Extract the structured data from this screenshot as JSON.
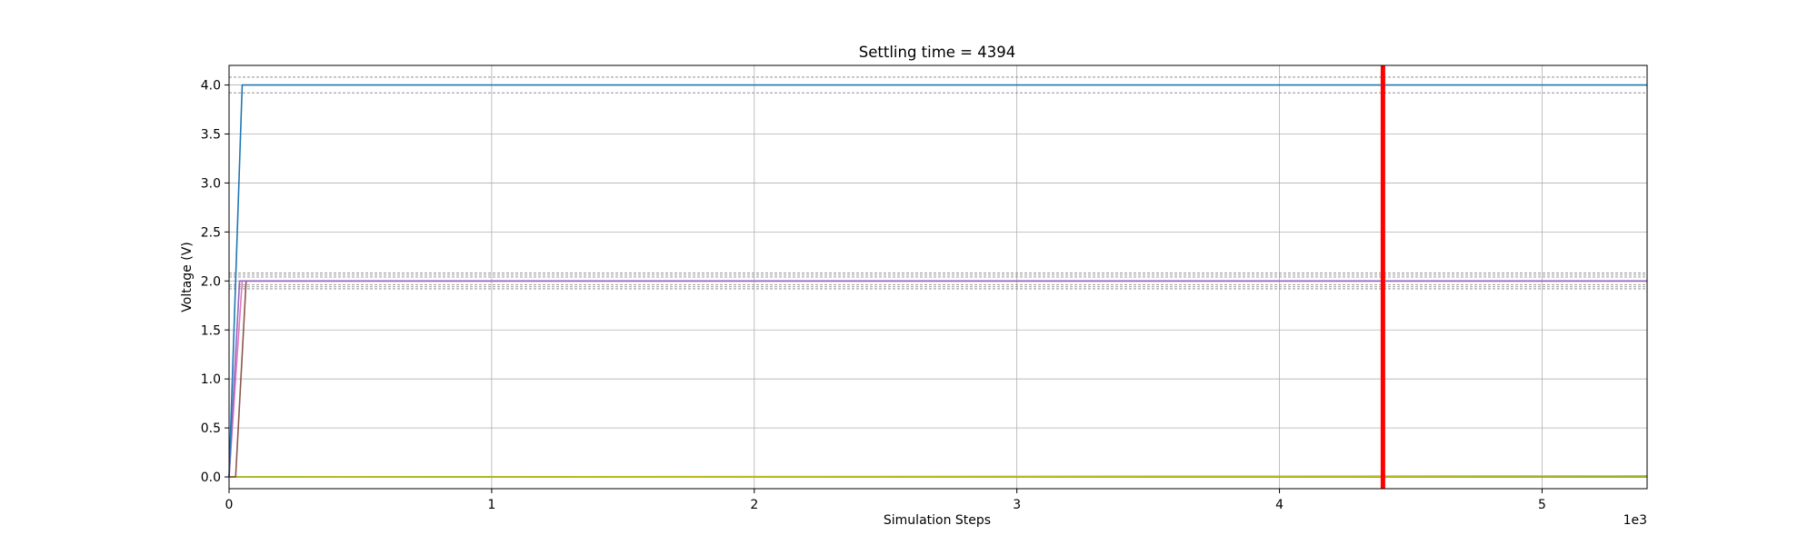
{
  "chart_data": {
    "type": "line",
    "title": "Settling time = 4394",
    "xlabel": "Simulation Steps",
    "ylabel": "Voltage (V)",
    "x_offset_label": "1e3",
    "xlim": [
      0,
      5400
    ],
    "ylim": [
      -0.12,
      4.2
    ],
    "x_ticks": [
      0,
      1000,
      2000,
      3000,
      4000,
      5000
    ],
    "x_tick_labels": [
      "0",
      "1",
      "2",
      "3",
      "4",
      "5"
    ],
    "y_ticks": [
      0.0,
      0.5,
      1.0,
      1.5,
      2.0,
      2.5,
      3.0,
      3.5,
      4.0
    ],
    "y_tick_labels": [
      "0.0",
      "0.5",
      "1.0",
      "1.5",
      "2.0",
      "2.5",
      "3.0",
      "3.5",
      "4.0"
    ],
    "grid": true,
    "settling_time": 4394,
    "settling_marker_color": "#ff0000",
    "tolerance_bands": [
      {
        "lower": 3.92,
        "upper": 4.08
      },
      {
        "lower": 1.96,
        "upper": 2.04
      },
      {
        "lower": 1.94,
        "upper": 2.06
      },
      {
        "lower": 1.92,
        "upper": 2.08
      }
    ],
    "series": [
      {
        "color": "#1f77b4",
        "points": [
          [
            0,
            0.0
          ],
          [
            50,
            4.0
          ],
          [
            5400,
            4.0
          ]
        ]
      },
      {
        "color": "#9467bd",
        "points": [
          [
            0,
            0.0
          ],
          [
            40,
            2.0
          ],
          [
            5400,
            2.0
          ]
        ]
      },
      {
        "color": "#e377c2",
        "points": [
          [
            0,
            0.0
          ],
          [
            50,
            2.0
          ],
          [
            5400,
            2.0
          ]
        ]
      },
      {
        "color": "#8c564b",
        "points": [
          [
            0,
            0.0
          ],
          [
            25,
            0.0
          ],
          [
            65,
            2.0
          ],
          [
            5400,
            2.0
          ]
        ]
      },
      {
        "color": "#bcbd22",
        "points": [
          [
            0,
            0.0
          ],
          [
            5400,
            0.01
          ]
        ]
      },
      {
        "color": "#2ca02c",
        "points": [
          [
            0,
            0.0
          ],
          [
            5400,
            0.005
          ]
        ]
      },
      {
        "color": "#ff7f0e",
        "points": [
          [
            0,
            0.0
          ],
          [
            5400,
            0.0
          ]
        ]
      }
    ]
  }
}
